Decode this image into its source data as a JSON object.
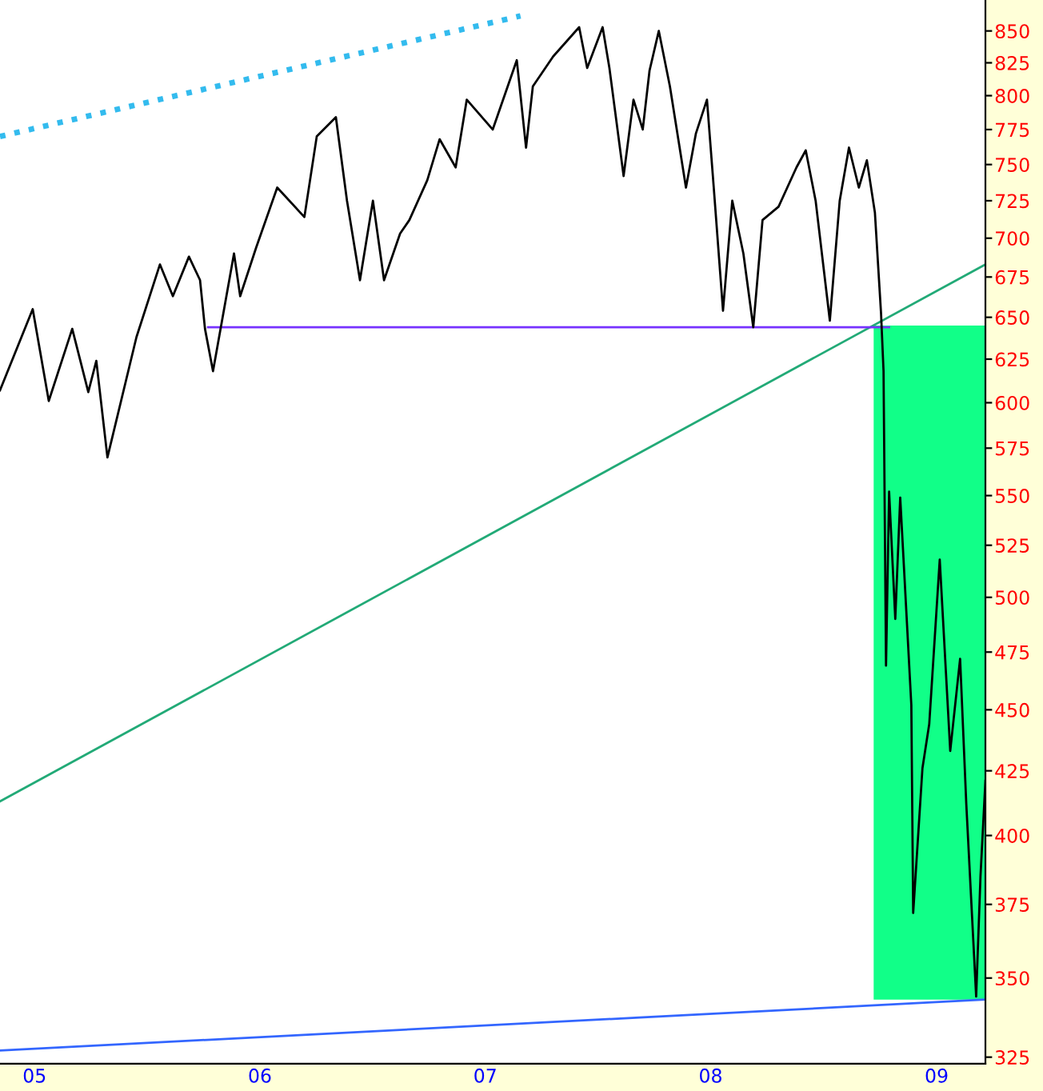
{
  "chart_data": {
    "type": "line",
    "log": "y",
    "xlim": [
      "2004-11-06",
      "2009-03-21"
    ],
    "xticks": [
      {
        "value": "2005-01-01",
        "label": "05"
      },
      {
        "value": "2006-01-01",
        "label": "06"
      },
      {
        "value": "2007-01-01",
        "label": "07"
      },
      {
        "value": "2008-01-01",
        "label": "08"
      },
      {
        "value": "2009-01-01",
        "label": "09"
      }
    ],
    "ylim": [
      323,
      875
    ],
    "yticks": [
      325,
      350,
      375,
      400,
      425,
      450,
      475,
      500,
      525,
      550,
      575,
      600,
      625,
      650,
      675,
      700,
      725,
      750,
      775,
      800,
      825,
      850
    ],
    "series": [
      {
        "type": "bar",
        "color": "#11ff88",
        "x": [
          "2008-12-20"
        ],
        "base": [
          343
        ],
        "values": [
          302
        ]
      },
      {
        "type": "line",
        "color": "#33bbee",
        "line_style": "dotted",
        "x": [
          "2004-11-06",
          "2007-02-27"
        ],
        "values": [
          770,
          862
        ]
      },
      {
        "type": "line",
        "color": "#22aa77",
        "line_style": "solid",
        "x": [
          "2004-11-06",
          "2009-03-21"
        ],
        "values": [
          413,
          683
        ]
      },
      {
        "type": "line",
        "color": "#7733ff",
        "line_style": "solid",
        "x": [
          "2005-10-09",
          "2008-10-16"
        ],
        "values": [
          644,
          644
        ]
      },
      {
        "type": "line",
        "color": "#3366ff",
        "line_style": "solid",
        "x": [
          "2004-11-06",
          "2009-03-21"
        ],
        "values": [
          327,
          343
        ]
      },
      {
        "color": "#000000",
        "line_style": "solid",
        "x": [
          "2004-11-06",
          "2004-12-29",
          "2005-01-24",
          "2005-03-03",
          "2005-03-29",
          "2005-04-11",
          "2005-04-29",
          "2005-06-15",
          "2005-07-23",
          "2005-08-13",
          "2005-09-08",
          "2005-09-26",
          "2005-10-04",
          "2005-10-17",
          "2005-11-20",
          "2005-11-30",
          "2005-12-26",
          "2006-01-29",
          "2006-03-14",
          "2006-04-03",
          "2006-05-04",
          "2006-05-22",
          "2006-06-12",
          "2006-07-03",
          "2006-07-21",
          "2006-08-16",
          "2006-08-31",
          "2006-09-29",
          "2006-10-19",
          "2006-11-14",
          "2006-12-02",
          "2007-01-13",
          "2007-02-21",
          "2007-03-08",
          "2007-03-19",
          "2007-04-21",
          "2007-06-02",
          "2007-06-15",
          "2007-07-10",
          "2007-07-21",
          "2007-08-13",
          "2007-08-29",
          "2007-09-13",
          "2007-09-24",
          "2007-10-09",
          "2007-10-27",
          "2007-11-22",
          "2007-12-08",
          "2007-12-26",
          "2008-01-06",
          "2008-01-21",
          "2008-02-05",
          "2008-02-23",
          "2008-03-10",
          "2008-03-25",
          "2008-04-20",
          "2008-05-19",
          "2008-06-03",
          "2008-06-19",
          "2008-07-12",
          "2008-07-28",
          "2008-08-12",
          "2008-08-28",
          "2008-09-10",
          "2008-09-23",
          "2008-10-03",
          "2008-10-07",
          "2008-10-11",
          "2008-10-16",
          "2008-10-26",
          "2008-11-03",
          "2008-11-21",
          "2008-11-24",
          "2008-12-09",
          "2008-12-20",
          "2009-01-06",
          "2009-01-23",
          "2009-02-08",
          "2009-02-18",
          "2009-03-06",
          "2009-03-13",
          "2009-03-21"
        ],
        "values": [
          607,
          655,
          601,
          643,
          606,
          624,
          570,
          638,
          683,
          663,
          688,
          673,
          643,
          618,
          690,
          663,
          694,
          734,
          714,
          770,
          784,
          725,
          673,
          725,
          673,
          703,
          712,
          739,
          768,
          748,
          797,
          775,
          827,
          762,
          807,
          830,
          853,
          821,
          853,
          821,
          742,
          797,
          775,
          819,
          850,
          807,
          734,
          772,
          797,
          734,
          654,
          725,
          690,
          644,
          712,
          721,
          748,
          760,
          725,
          648,
          725,
          762,
          734,
          753,
          717,
          652,
          618,
          469,
          552,
          490,
          549,
          452,
          372,
          426,
          444,
          518,
          433,
          472,
          412,
          344,
          385,
          421
        ]
      }
    ]
  }
}
